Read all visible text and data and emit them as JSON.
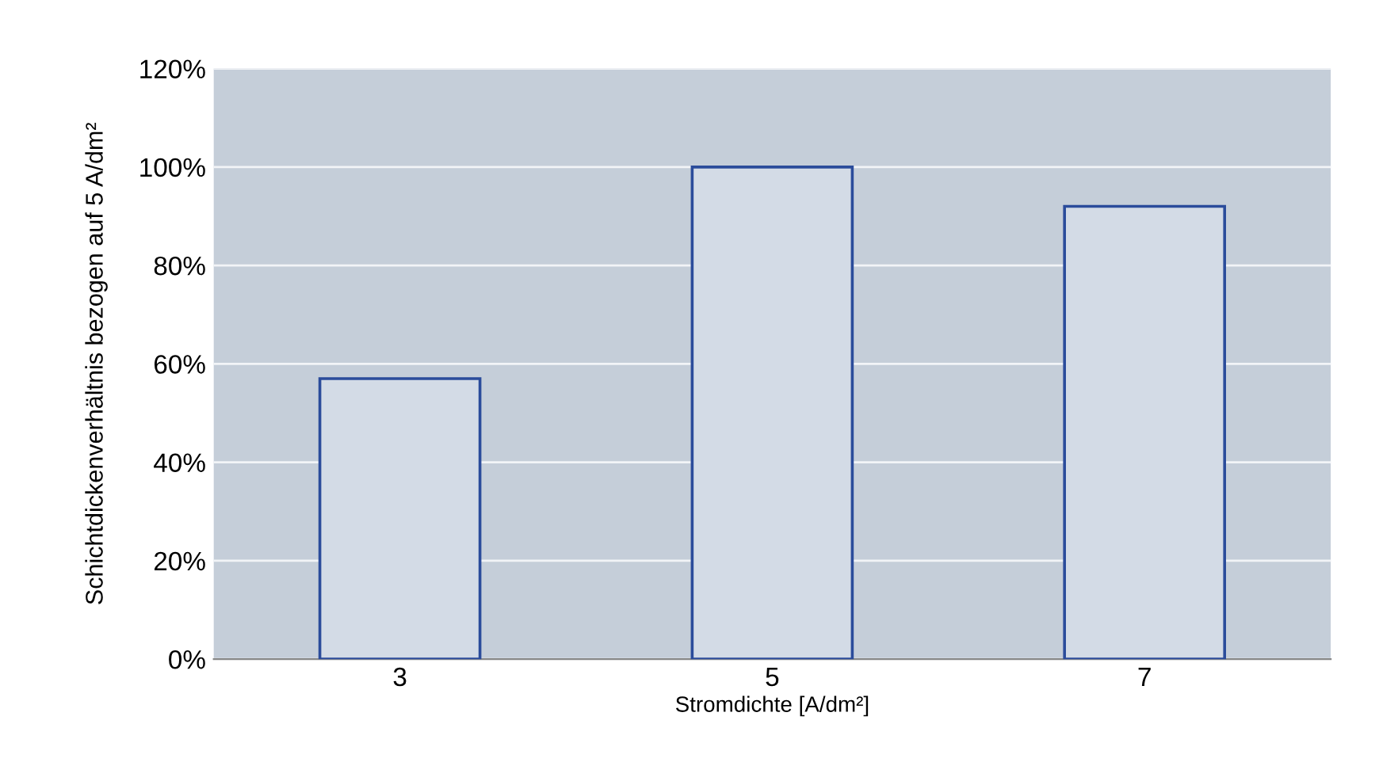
{
  "chart_data": {
    "type": "bar",
    "xlabel": "Stromdichte [A/dm²]",
    "ylabel": "Schichtdickenverhältnis bezogen auf 5 A/dm²",
    "categories": [
      "3",
      "5",
      "7"
    ],
    "values": [
      57,
      100,
      92
    ],
    "color": "#d3dbe6",
    "ylim": [
      0,
      120
    ],
    "yticks": [
      {
        "value": 0,
        "label": "0%"
      },
      {
        "value": 20,
        "label": "20%"
      },
      {
        "value": 40,
        "label": "40%"
      },
      {
        "value": 60,
        "label": "60%"
      },
      {
        "value": 80,
        "label": "80%"
      },
      {
        "value": 100,
        "label": "100%"
      },
      {
        "value": 120,
        "label": "120%"
      }
    ],
    "grid": "y"
  }
}
